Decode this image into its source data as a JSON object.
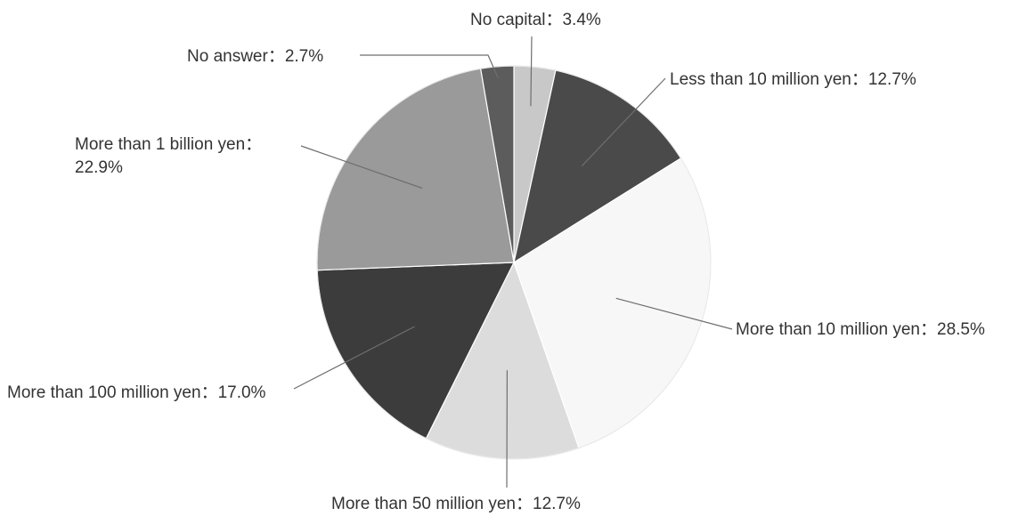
{
  "chart_data": {
    "type": "pie",
    "title": "",
    "slices": [
      {
        "label": "No capital",
        "value": 3.4,
        "display": "No capital：3.4%",
        "color": "#c8c8c8"
      },
      {
        "label": "Less than 10 million yen",
        "value": 12.7,
        "display": "Less than 10 million yen：12.7%",
        "color": "#4a4a4a"
      },
      {
        "label": "More than 10 million yen",
        "value": 28.5,
        "display": "More than 10 million yen：28.5%",
        "color": "#f7f7f7"
      },
      {
        "label": "More than 50 million yen",
        "value": 12.7,
        "display": "More than 50 million yen：12.7%",
        "color": "#dcdcdc"
      },
      {
        "label": "More than 100 million yen",
        "value": 17.0,
        "display": "More than 100 million yen：17.0%",
        "color": "#3c3c3c"
      },
      {
        "label": "More than 1 billion yen",
        "value": 22.9,
        "display_lines": [
          "More than 1 billion yen：",
          "22.9%"
        ],
        "color": "#9a9a9a"
      },
      {
        "label": "No answer",
        "value": 2.7,
        "display": "No answer：2.7%",
        "color": "#5c5c5c"
      }
    ],
    "legend": "none",
    "label_placement": "outside-with-leader-lines"
  }
}
